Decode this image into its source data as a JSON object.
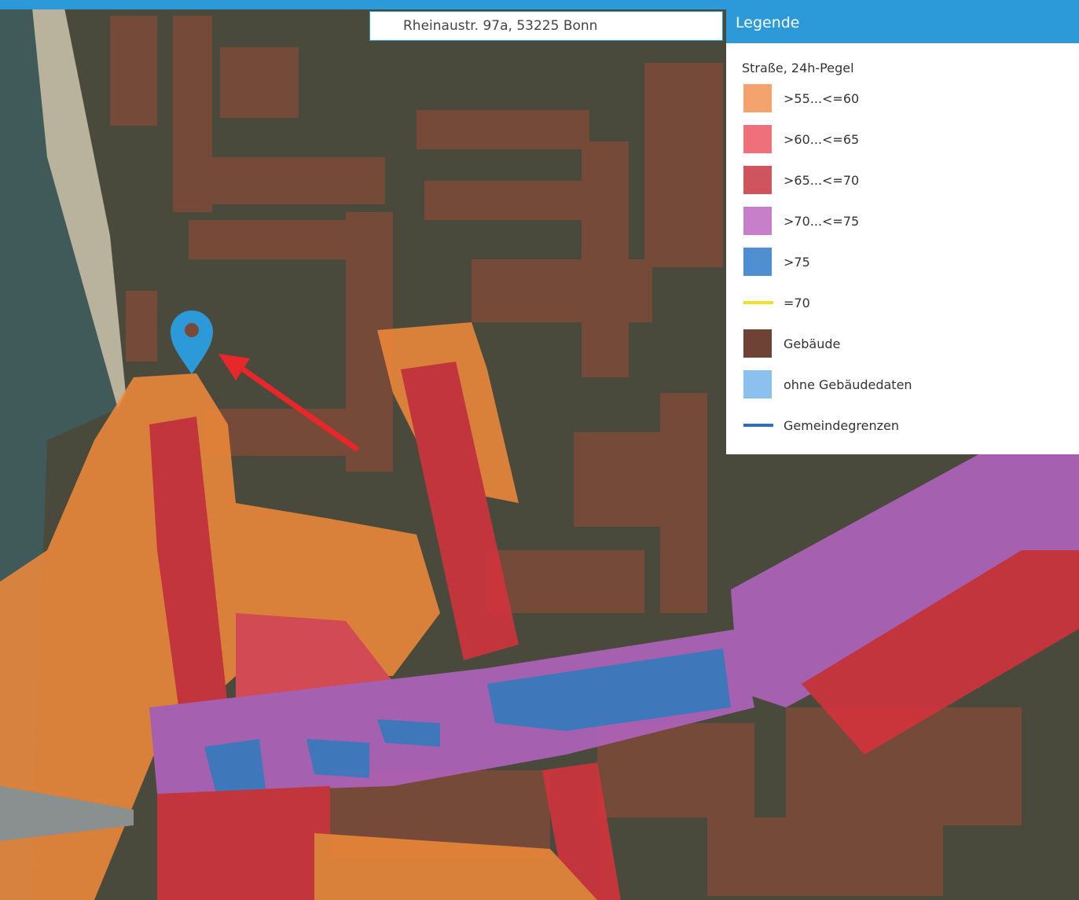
{
  "search": {
    "address": "Rheinaustr. 97a, 53225 Bonn"
  },
  "legend": {
    "title": "Legende",
    "section": "Straße, 24h-Pegel",
    "items": [
      {
        "label": ">55...<=60",
        "color": "#f5a36e",
        "symbol": "square"
      },
      {
        "label": ">60...<=65",
        "color": "#ef6f7a",
        "symbol": "square"
      },
      {
        "label": ">65...<=70",
        "color": "#d0545e",
        "symbol": "square"
      },
      {
        "label": ">70...<=75",
        "color": "#c77fc9",
        "symbol": "square"
      },
      {
        "label": ">75",
        "color": "#4f8fd1",
        "symbol": "square"
      },
      {
        "label": "=70",
        "color": "#f0e22a",
        "symbol": "line"
      },
      {
        "label": "Gebäude",
        "color": "#6e4335",
        "symbol": "square"
      },
      {
        "label": "ohne Gebäudedaten",
        "color": "#8cc0ee",
        "symbol": "square"
      },
      {
        "label": "Gemeindegrenzen",
        "color": "#2f6cc4",
        "symbol": "line"
      }
    ]
  }
}
